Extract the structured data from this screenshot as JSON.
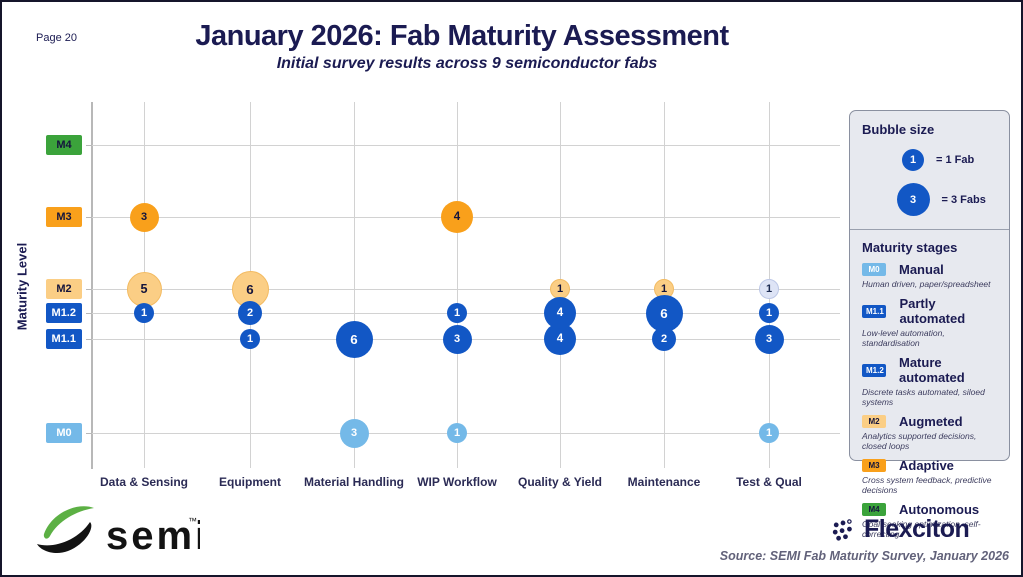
{
  "page_label": "Page 20",
  "header": {
    "title": "January 2026: Fab Maturity Assessment",
    "subtitle": "Initial survey results across 9 semiconductor fabs"
  },
  "chart_data": {
    "type": "bubble",
    "title": "January 2026: Fab Maturity Assessment",
    "subtitle": "Initial survey results across 9 semiconductor fabs",
    "xlabel": "",
    "ylabel": "Maturity Level",
    "grid": true,
    "categories": [
      "Data & Sensing",
      "Equipment",
      "Material Handling",
      "WIP Workflow",
      "Quality & Yield",
      "Maintenance",
      "Test & Qual"
    ],
    "levels": [
      {
        "label": "M4",
        "color": "#3ba33b",
        "text_color": "#14143c"
      },
      {
        "label": "M3",
        "color": "#f9a01b",
        "text_color": "#14143c"
      },
      {
        "label": "M2",
        "color": "#fbce85",
        "text_color": "#14143c"
      },
      {
        "label": "M1.2",
        "color": "#1257c5",
        "text_color": "#ffffff"
      },
      {
        "label": "M1.1",
        "color": "#1257c5",
        "text_color": "#ffffff"
      },
      {
        "label": "M0",
        "color": "#74b9e8",
        "text_color": "#ffffff"
      }
    ],
    "points": [
      {
        "category": "Data & Sensing",
        "level": "M3",
        "value": 3,
        "style": "orange"
      },
      {
        "category": "Data & Sensing",
        "level": "M2",
        "value": 5,
        "style": "lightOrange"
      },
      {
        "category": "Data & Sensing",
        "level": "M1.2",
        "value": 1,
        "style": "blue"
      },
      {
        "category": "Equipment",
        "level": "M2",
        "value": 6,
        "style": "lightOrange"
      },
      {
        "category": "Equipment",
        "level": "M1.2",
        "value": 2,
        "style": "blue"
      },
      {
        "category": "Equipment",
        "level": "M1.1",
        "value": 1,
        "style": "blue"
      },
      {
        "category": "Material Handling",
        "level": "M1.1",
        "value": 6,
        "style": "blue"
      },
      {
        "category": "Material Handling",
        "level": "M0",
        "value": 3,
        "style": "lightBlue"
      },
      {
        "category": "WIP Workflow",
        "level": "M3",
        "value": 4,
        "style": "orange"
      },
      {
        "category": "WIP Workflow",
        "level": "M1.2",
        "value": 1,
        "style": "blue"
      },
      {
        "category": "WIP Workflow",
        "level": "M1.1",
        "value": 3,
        "style": "blue"
      },
      {
        "category": "WIP Workflow",
        "level": "M0",
        "value": 1,
        "style": "lightBlue"
      },
      {
        "category": "Quality & Yield",
        "level": "M2",
        "value": 1,
        "style": "lightOrange"
      },
      {
        "category": "Quality & Yield",
        "level": "M1.2",
        "value": 4,
        "style": "blue"
      },
      {
        "category": "Quality & Yield",
        "level": "M1.1",
        "value": 4,
        "style": "blue"
      },
      {
        "category": "Maintenance",
        "level": "M2",
        "value": 1,
        "style": "lightOrange"
      },
      {
        "category": "Maintenance",
        "level": "M1.2",
        "value": 6,
        "style": "blue"
      },
      {
        "category": "Maintenance",
        "level": "M1.1",
        "value": 2,
        "style": "blue"
      },
      {
        "category": "Test & Qual",
        "level": "M2",
        "value": 1,
        "style": "pale"
      },
      {
        "category": "Test & Qual",
        "level": "M1.2",
        "value": 1,
        "style": "blue"
      },
      {
        "category": "Test & Qual",
        "level": "M1.1",
        "value": 3,
        "style": "blue"
      },
      {
        "category": "Test & Qual",
        "level": "M0",
        "value": 1,
        "style": "lightBlue"
      }
    ],
    "bubble_styles": {
      "orange": {
        "bg": "#f9a01b",
        "fg": "#14143c",
        "border": "none"
      },
      "lightOrange": {
        "bg": "#fbce85",
        "fg": "#14143c",
        "border": "1px solid #f3bb62"
      },
      "blue": {
        "bg": "#1257c5",
        "fg": "#ffffff",
        "border": "none"
      },
      "lightBlue": {
        "bg": "#74b9e8",
        "fg": "#ffffff",
        "border": "none"
      },
      "pale": {
        "bg": "#dee4f6",
        "fg": "#1b2a50",
        "border": "1px solid #bcc7e6"
      }
    }
  },
  "legend_bubble_size": {
    "title": "Bubble size",
    "items": [
      {
        "value": "1",
        "label": "= 1 Fab",
        "diameter": 22
      },
      {
        "value": "3",
        "label": "= 3 Fabs",
        "diameter": 33
      }
    ]
  },
  "legend_stages": {
    "title": "Maturity stages",
    "items": [
      {
        "badge": "M0",
        "badge_color": "#74b9e8",
        "badge_text_color": "#ffffff",
        "name": "Manual",
        "desc": "Human driven, paper/spreadsheet"
      },
      {
        "badge": "M1.1",
        "badge_color": "#1257c5",
        "badge_text_color": "#ffffff",
        "name": "Partly automated",
        "desc": "Low-level automation, standardisation"
      },
      {
        "badge": "M1.2",
        "badge_color": "#1257c5",
        "badge_text_color": "#ffffff",
        "name": "Mature automated",
        "desc": "Discrete tasks automated, siloed systems"
      },
      {
        "badge": "M2",
        "badge_color": "#fbce85",
        "badge_text_color": "#14143c",
        "name": "Augmeted",
        "desc": "Analytics supported decisions, closed loops"
      },
      {
        "badge": "M3",
        "badge_color": "#f9a01b",
        "badge_text_color": "#14143c",
        "name": "Adaptive",
        "desc": "Cross system feedback, predictive decisions"
      },
      {
        "badge": "M4",
        "badge_color": "#3ba33b",
        "badge_text_color": "#14143c",
        "name": "Autonomous",
        "desc": "Goal-seeking optimization, self-correcting"
      }
    ]
  },
  "footer": {
    "semi_logo_text": "semi",
    "semi_tm": "™",
    "flexciton_logo_text": "Flexciton",
    "source": "Source: SEMI Fab Maturity Survey, January 2026"
  },
  "colors": {
    "navy": "#1b1b52",
    "royal_blue": "#1257c5",
    "orange": "#f9a01b",
    "light_orange": "#fbce85",
    "light_blue": "#74b9e8",
    "green": "#3ba33b",
    "pale_lavender": "#dee4f6",
    "gridline": "#d2d2d2",
    "legend_bg": "#e7e9ef"
  }
}
